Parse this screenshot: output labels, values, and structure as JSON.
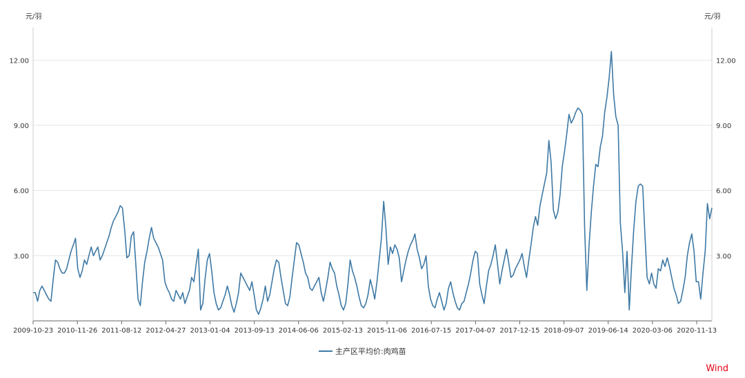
{
  "chart_data": {
    "type": "line",
    "title": "",
    "y_unit_left": "元/羽",
    "y_unit_right": "元/羽",
    "ylim": [
      0,
      13.5
    ],
    "y_ticks": [
      "3.00",
      "6.00",
      "9.00",
      "12.00"
    ],
    "y_tick_values": [
      3,
      6,
      9,
      12
    ],
    "x_tick_labels": [
      "2009-10-23",
      "2010-11-26",
      "2011-08-12",
      "2012-04-27",
      "2013-01-04",
      "2013-09-13",
      "2014-06-06",
      "2015-02-13",
      "2015-11-06",
      "2016-07-15",
      "2017-04-07",
      "2017-12-15",
      "2018-09-07",
      "2019-06-14",
      "2020-03-06",
      "2020-11-13"
    ],
    "grid": true,
    "legend_position": "bottom",
    "series": [
      {
        "name": "主产区平均价:肉鸡苗",
        "color": "#3d78a4",
        "values": [
          1.3,
          1.3,
          0.9,
          1.4,
          1.6,
          1.4,
          1.2,
          1.0,
          0.9,
          1.9,
          2.8,
          2.7,
          2.4,
          2.2,
          2.2,
          2.4,
          2.8,
          3.2,
          3.5,
          3.8,
          2.4,
          2.0,
          2.3,
          2.8,
          2.6,
          3.0,
          3.4,
          3.0,
          3.2,
          3.4,
          2.8,
          3.0,
          3.3,
          3.6,
          3.9,
          4.3,
          4.6,
          4.8,
          5.0,
          5.3,
          5.2,
          4.2,
          2.9,
          3.0,
          3.9,
          4.1,
          2.6,
          1.0,
          0.7,
          1.8,
          2.7,
          3.2,
          3.8,
          4.3,
          3.8,
          3.6,
          3.4,
          3.1,
          2.8,
          1.8,
          1.5,
          1.3,
          1.0,
          0.9,
          1.4,
          1.2,
          1.0,
          1.3,
          0.8,
          1.1,
          1.4,
          2.0,
          1.8,
          2.6,
          3.3,
          0.5,
          0.8,
          1.9,
          2.8,
          3.1,
          2.3,
          1.3,
          0.8,
          0.5,
          0.6,
          0.9,
          1.2,
          1.6,
          1.2,
          0.7,
          0.4,
          0.8,
          1.3,
          2.2,
          2.0,
          1.8,
          1.6,
          1.4,
          1.8,
          1.2,
          0.5,
          0.3,
          0.6,
          1.0,
          1.6,
          0.9,
          1.2,
          1.8,
          2.4,
          2.8,
          2.7,
          2.0,
          1.4,
          0.8,
          0.7,
          1.1,
          2.0,
          2.8,
          3.6,
          3.5,
          3.1,
          2.7,
          2.2,
          2.0,
          1.5,
          1.4,
          1.6,
          1.8,
          2.0,
          1.3,
          0.9,
          1.4,
          2.0,
          2.7,
          2.4,
          2.2,
          1.6,
          1.2,
          0.7,
          0.5,
          0.8,
          1.7,
          2.8,
          2.3,
          2.0,
          1.6,
          1.1,
          0.7,
          0.6,
          0.8,
          1.2,
          1.9,
          1.5,
          1.0,
          1.8,
          2.8,
          3.8,
          5.5,
          4.3,
          2.6,
          3.4,
          3.1,
          3.5,
          3.3,
          2.9,
          1.8,
          2.3,
          2.8,
          3.2,
          3.5,
          3.7,
          4.0,
          3.3,
          2.9,
          2.4,
          2.6,
          3.0,
          1.6,
          1.0,
          0.7,
          0.6,
          1.0,
          1.3,
          0.9,
          0.5,
          0.8,
          1.5,
          1.8,
          1.3,
          0.9,
          0.6,
          0.5,
          0.8,
          0.9,
          1.3,
          1.7,
          2.2,
          2.8,
          3.2,
          3.1,
          1.7,
          1.2,
          0.8,
          1.6,
          2.3,
          2.6,
          3.0,
          3.5,
          2.6,
          1.7,
          2.3,
          2.8,
          3.3,
          2.7,
          2.0,
          2.1,
          2.4,
          2.6,
          2.8,
          3.1,
          2.5,
          2.0,
          2.8,
          3.5,
          4.3,
          4.8,
          4.4,
          5.3,
          5.8,
          6.3,
          6.8,
          8.3,
          7.3,
          5.1,
          4.7,
          5.0,
          5.8,
          7.1,
          7.8,
          8.6,
          9.5,
          9.1,
          9.3,
          9.6,
          9.8,
          9.7,
          9.5,
          4.3,
          1.4,
          3.5,
          5.0,
          6.2,
          7.2,
          7.1,
          8.0,
          8.5,
          9.6,
          10.3,
          11.2,
          12.4,
          10.4,
          9.4,
          9.0,
          4.5,
          3.2,
          1.3,
          3.2,
          0.5,
          2.5,
          4.2,
          5.5,
          6.2,
          6.3,
          6.2,
          4.0,
          2.0,
          1.7,
          2.2,
          1.7,
          1.5,
          2.4,
          2.3,
          2.8,
          2.5,
          2.9,
          2.5,
          2.0,
          1.5,
          1.2,
          0.8,
          0.9,
          1.4,
          2.0,
          3.0,
          3.6,
          4.0,
          3.2,
          1.8,
          1.8,
          1.0,
          2.2,
          3.2,
          5.4,
          4.7,
          5.2
        ]
      }
    ]
  },
  "legend": {
    "label": "主产区平均价:肉鸡苗"
  },
  "watermark": {
    "text": "Wind"
  }
}
